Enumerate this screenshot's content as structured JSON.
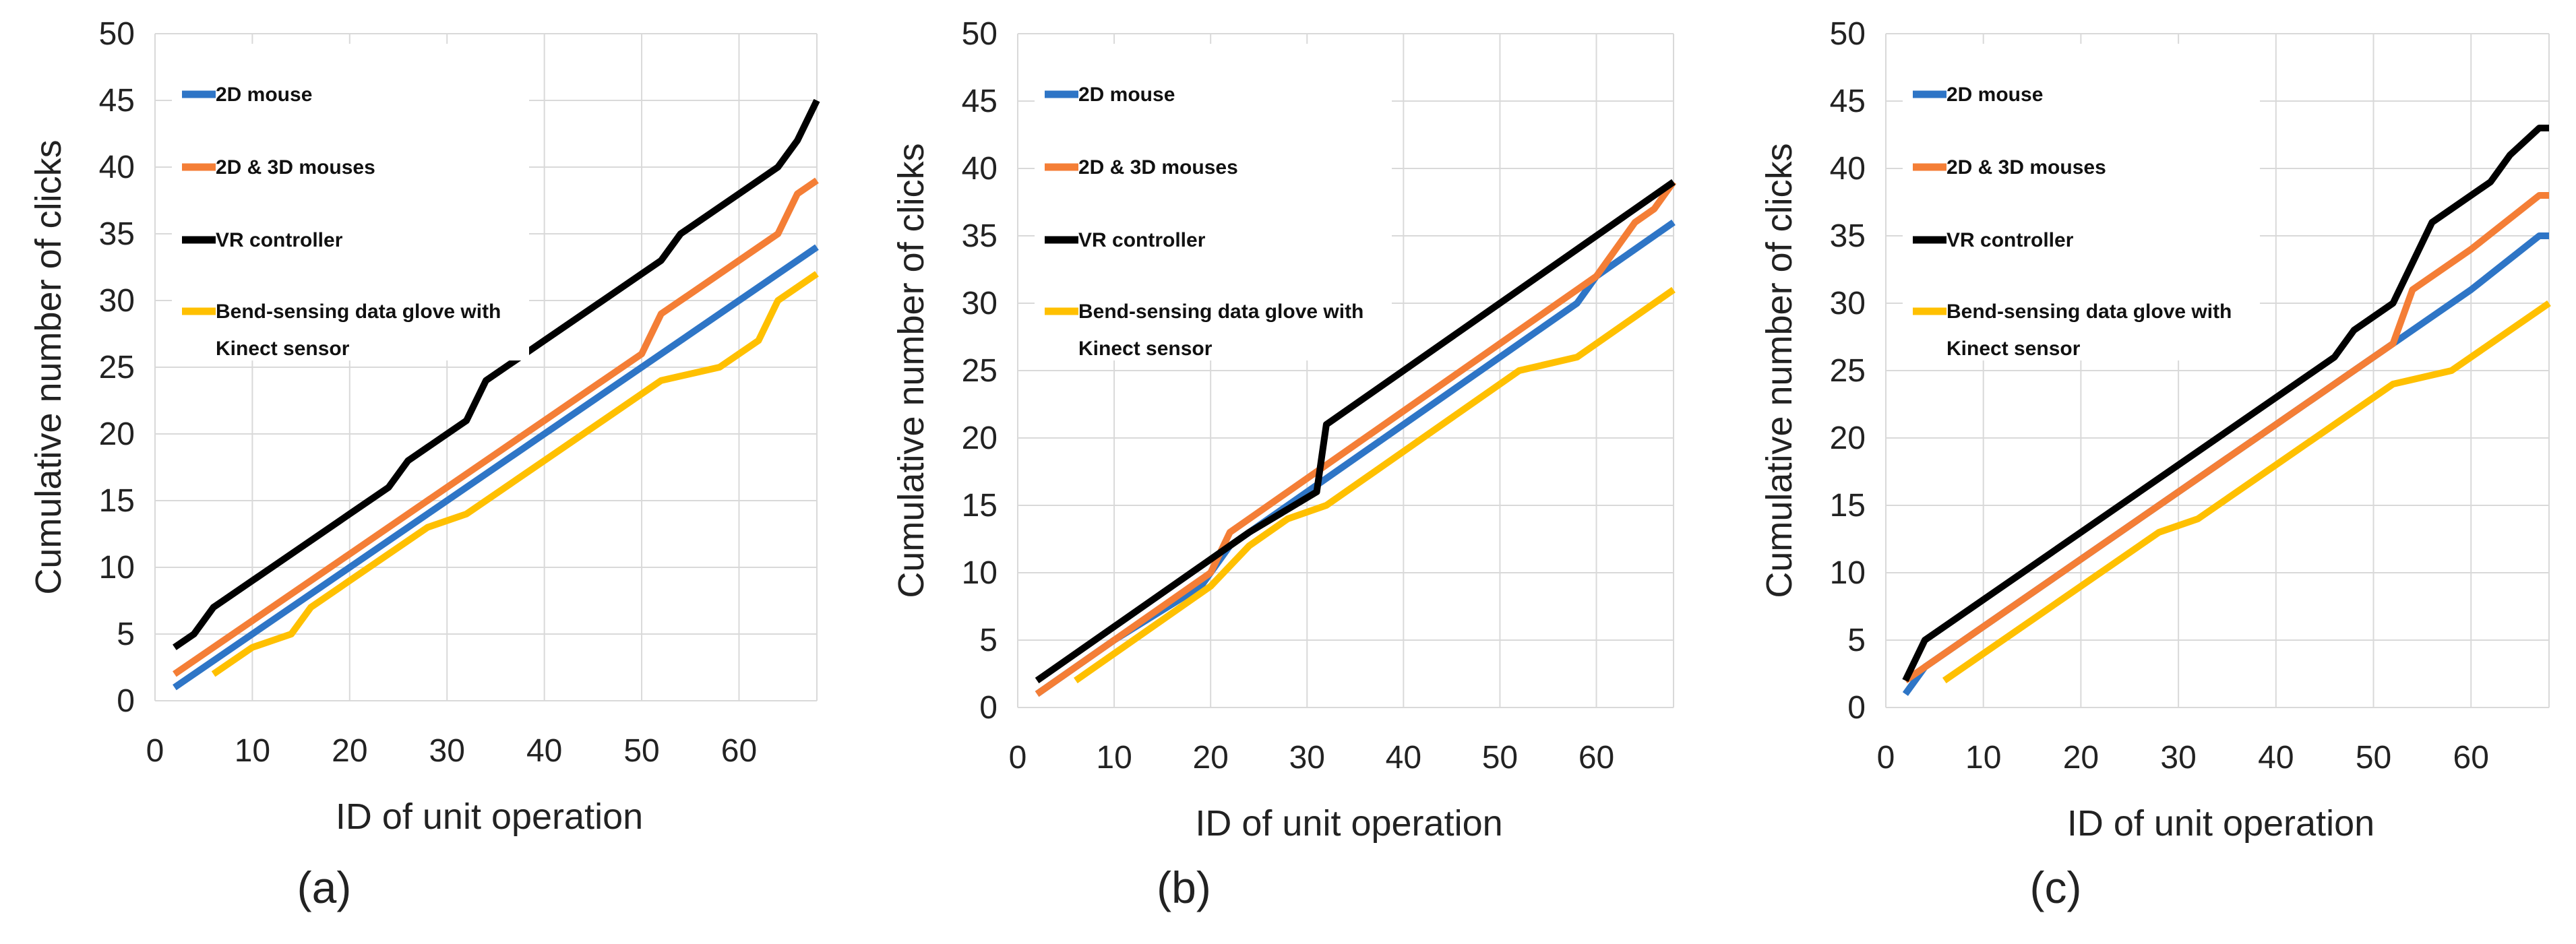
{
  "chart_data": [
    {
      "type": "line",
      "panel_label": "(a)",
      "xlabel": "ID of unit operation",
      "ylabel": "Cumulative number of clicks",
      "xlim": [
        0,
        68
      ],
      "ylim": [
        0,
        50
      ],
      "x_ticks": [
        0,
        10,
        20,
        30,
        40,
        50,
        60
      ],
      "y_ticks": [
        0,
        5,
        10,
        15,
        20,
        25,
        30,
        35,
        40,
        45,
        50
      ],
      "grid": true,
      "legend": "top-left",
      "series": [
        {
          "name": "2D mouse",
          "color": "#2E75C6",
          "x": [
            2,
            10,
            20,
            30,
            40,
            50,
            60,
            68
          ],
          "y": [
            1,
            5,
            10,
            15,
            20,
            25,
            30,
            34
          ]
        },
        {
          "name": "2D & 3D mouses",
          "color": "#F47E36",
          "x": [
            2,
            10,
            20,
            30,
            40,
            50,
            52,
            60,
            64,
            66,
            68
          ],
          "y": [
            2,
            6,
            11,
            16,
            21,
            26,
            29,
            33,
            35,
            38,
            39
          ]
        },
        {
          "name": "VR controller",
          "color": "#000000",
          "x": [
            2,
            4,
            6,
            10,
            20,
            24,
            26,
            28,
            32,
            34,
            40,
            50,
            52,
            54,
            60,
            64,
            66,
            68
          ],
          "y": [
            4,
            5,
            7,
            9,
            14,
            16,
            18,
            19,
            21,
            24,
            27,
            32,
            33,
            35,
            38,
            40,
            42,
            45
          ]
        },
        {
          "name": "Bend-sensing data glove with Kinect sensor",
          "color": "#FFC000",
          "x": [
            6,
            10,
            14,
            16,
            20,
            28,
            32,
            40,
            46,
            52,
            58,
            62,
            64,
            68
          ],
          "y": [
            2,
            4,
            5,
            7,
            9,
            13,
            14,
            18,
            21,
            24,
            25,
            27,
            30,
            32
          ]
        }
      ]
    },
    {
      "type": "line",
      "panel_label": "(b)",
      "xlabel": "ID of unit operation",
      "ylabel": "Cumulative number of clicks",
      "xlim": [
        0,
        68
      ],
      "ylim": [
        0,
        50
      ],
      "x_ticks": [
        0,
        10,
        20,
        30,
        40,
        50,
        60
      ],
      "y_ticks": [
        0,
        5,
        10,
        15,
        20,
        25,
        30,
        35,
        40,
        45,
        50
      ],
      "grid": true,
      "legend": "top-left",
      "series": [
        {
          "name": "2D mouse",
          "color": "#2E75C6",
          "x": [
            2,
            10,
            19,
            22,
            30,
            40,
            50,
            58,
            60,
            68
          ],
          "y": [
            1,
            5,
            9,
            12,
            16,
            21,
            26,
            30,
            32,
            36
          ]
        },
        {
          "name": "2D & 3D mouses",
          "color": "#F47E36",
          "x": [
            2,
            10,
            20,
            22,
            30,
            40,
            50,
            58,
            60,
            64,
            66,
            68
          ],
          "y": [
            1,
            5,
            10,
            13,
            17,
            22,
            27,
            31,
            32,
            36,
            37,
            39
          ]
        },
        {
          "name": "VR controller",
          "color": "#000000",
          "x": [
            2,
            10,
            20,
            24,
            31,
            32,
            40,
            50,
            58,
            68
          ],
          "y": [
            2,
            6,
            11,
            13,
            16,
            21,
            25,
            30,
            34,
            39
          ]
        },
        {
          "name": "Bend-sensing data glove with Kinect sensor",
          "color": "#FFC000",
          "x": [
            6,
            10,
            20,
            24,
            28,
            32,
            40,
            46,
            52,
            58,
            64,
            68
          ],
          "y": [
            2,
            4,
            9,
            12,
            14,
            15,
            19,
            22,
            25,
            26,
            29,
            31
          ]
        }
      ]
    },
    {
      "type": "line",
      "panel_label": "(c)",
      "xlabel": "ID of unit operation",
      "ylabel": "Cumulative number of clicks",
      "xlim": [
        0,
        68
      ],
      "ylim": [
        0,
        50
      ],
      "x_ticks": [
        0,
        10,
        20,
        30,
        40,
        50,
        60
      ],
      "y_ticks": [
        0,
        5,
        10,
        15,
        20,
        25,
        30,
        35,
        40,
        45,
        50
      ],
      "grid": true,
      "legend": "top-left",
      "series": [
        {
          "name": "2D mouse",
          "color": "#2E75C6",
          "x": [
            2,
            4,
            10,
            20,
            30,
            40,
            50,
            60,
            67,
            68
          ],
          "y": [
            1,
            3,
            6,
            11,
            16,
            21,
            26,
            31,
            35,
            35
          ]
        },
        {
          "name": "2D & 3D mouses",
          "color": "#F47E36",
          "x": [
            2,
            4,
            10,
            20,
            30,
            40,
            50,
            52,
            54,
            60,
            67,
            68
          ],
          "y": [
            2,
            3,
            6,
            11,
            16,
            21,
            26,
            27,
            31,
            34,
            38,
            38
          ]
        },
        {
          "name": "VR controller",
          "color": "#000000",
          "x": [
            2,
            4,
            10,
            20,
            30,
            40,
            46,
            48,
            52,
            56,
            60,
            62,
            64,
            67,
            68
          ],
          "y": [
            2,
            5,
            8,
            13,
            18,
            23,
            26,
            28,
            30,
            36,
            38,
            39,
            41,
            43,
            43
          ]
        },
        {
          "name": "Bend-sensing data glove with Kinect sensor",
          "color": "#FFC000",
          "x": [
            6,
            10,
            20,
            28,
            32,
            40,
            46,
            52,
            58,
            62,
            68
          ],
          "y": [
            2,
            4,
            9,
            13,
            14,
            18,
            21,
            24,
            25,
            27,
            30
          ]
        }
      ]
    }
  ]
}
